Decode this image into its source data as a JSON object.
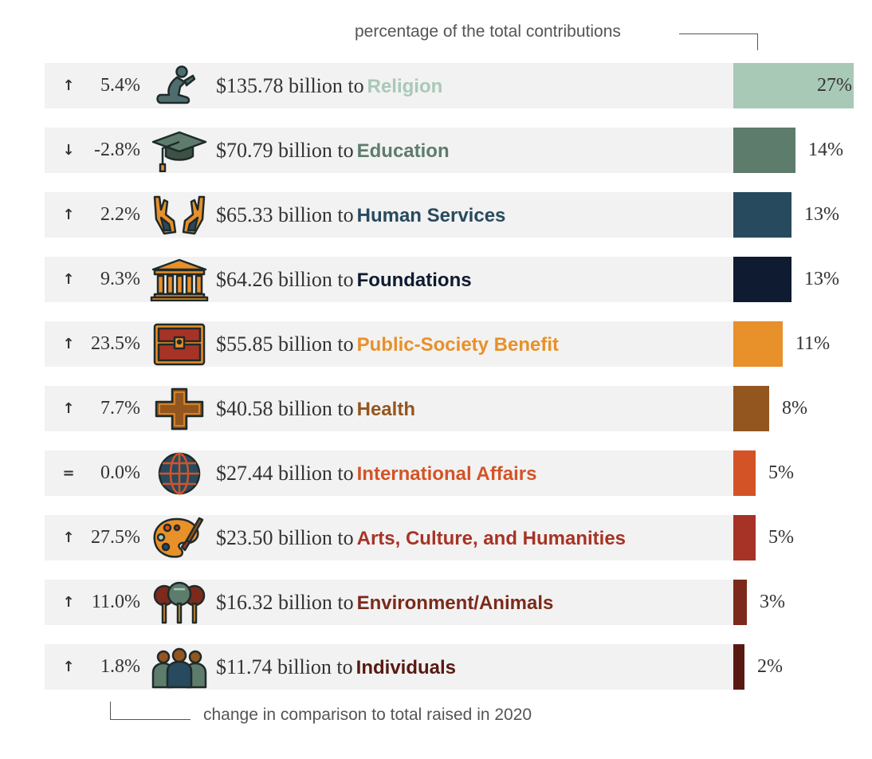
{
  "notes": {
    "top": "percentage of the total contributions",
    "bottom": "change in comparison to total raised in 2020"
  },
  "chart_data": {
    "type": "bar",
    "orientation": "horizontal",
    "rows": [
      {
        "change": "5.4%",
        "direction": "up",
        "amount": "$135.78 billion to",
        "category": "Religion",
        "percent_label": "27%",
        "percent": 27,
        "color": "#a9c9b7",
        "icon": "praying-person-icon"
      },
      {
        "change": "-2.8%",
        "direction": "down",
        "amount": "$70.79 billion to",
        "category": "Education",
        "percent_label": "14%",
        "percent": 14,
        "color": "#5e7c6b",
        "icon": "graduation-cap-icon"
      },
      {
        "change": "2.2%",
        "direction": "up",
        "amount": "$65.33 billion to",
        "category": "Human Services",
        "percent_label": "13%",
        "percent": 13,
        "color": "#274a5e",
        "icon": "open-hands-icon"
      },
      {
        "change": "9.3%",
        "direction": "up",
        "amount": "$64.26 billion to",
        "category": "Foundations",
        "percent_label": "13%",
        "percent": 13,
        "color": "#0e1b30",
        "icon": "institution-building-icon"
      },
      {
        "change": "23.5%",
        "direction": "up",
        "amount": "$55.85 billion to",
        "category": "Public-Society Benefit",
        "percent_label": "11%",
        "percent": 11,
        "color": "#e8902a",
        "icon": "treasure-chest-icon"
      },
      {
        "change": "7.7%",
        "direction": "up",
        "amount": "$40.58 billion to",
        "category": "Health",
        "percent_label": "8%",
        "percent": 8,
        "color": "#93561f",
        "icon": "medical-cross-icon"
      },
      {
        "change": "0.0%",
        "direction": "equal",
        "amount": "$27.44 billion to",
        "category": "International Affairs",
        "percent_label": "5%",
        "percent": 5,
        "color": "#d45326",
        "icon": "globe-icon"
      },
      {
        "change": "27.5%",
        "direction": "up",
        "amount": "$23.50 billion to",
        "category": "Arts, Culture, and Humanities",
        "percent_label": "5%",
        "percent": 5,
        "color": "#a73326",
        "icon": "paint-palette-icon"
      },
      {
        "change": "11.0%",
        "direction": "up",
        "amount": "$16.32 billion to",
        "category": "Environment/Animals",
        "percent_label": "3%",
        "percent": 3,
        "color": "#7b2a1b",
        "icon": "trees-icon"
      },
      {
        "change": "1.8%",
        "direction": "up",
        "amount": "$11.74 billion to",
        "category": "Individuals",
        "percent_label": "2%",
        "percent": 2,
        "color": "#581912",
        "icon": "people-group-icon"
      }
    ]
  }
}
